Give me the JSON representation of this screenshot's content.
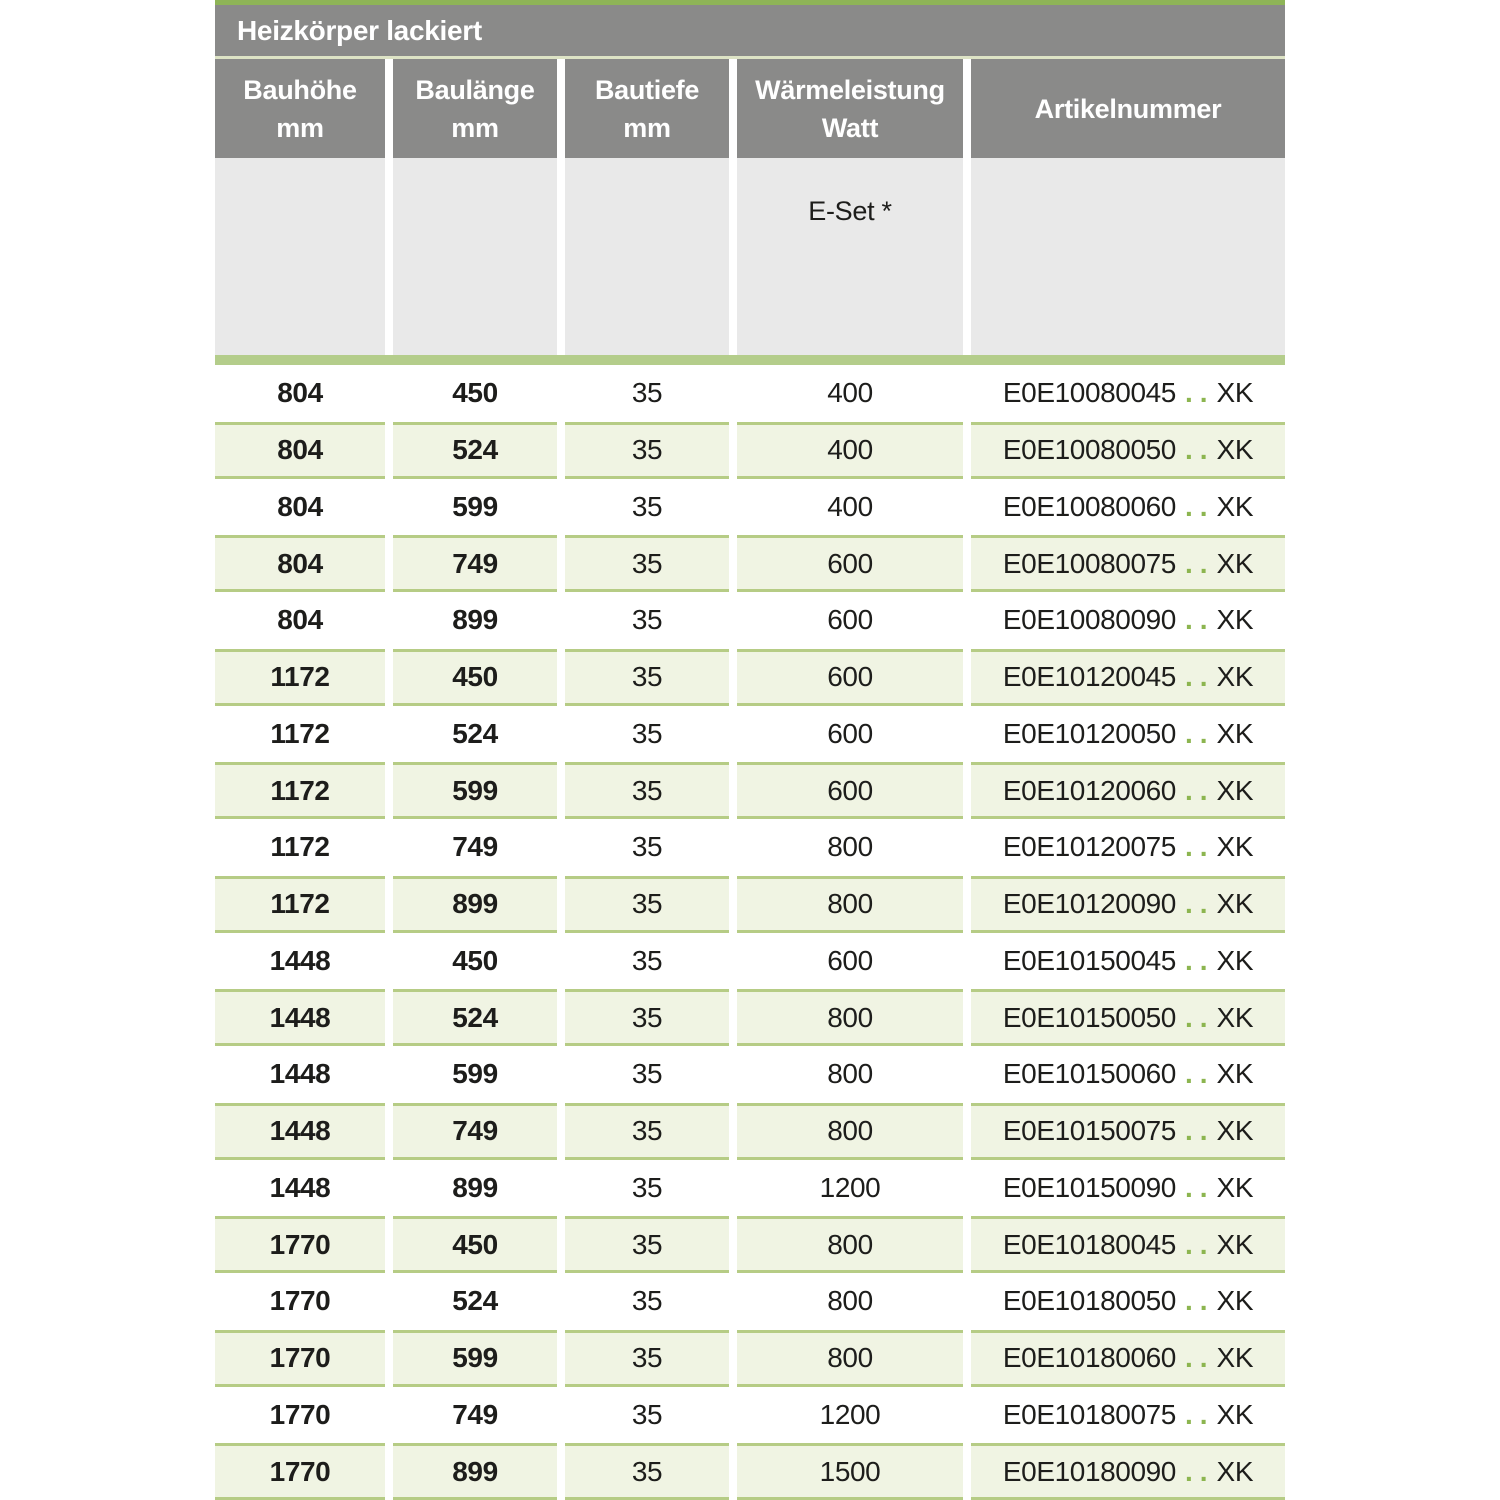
{
  "page": {
    "title": "Heizkörper lackiert"
  },
  "table": {
    "columns": [
      {
        "line1": "Bauhöhe",
        "line2": "mm"
      },
      {
        "line1": "Baulänge",
        "line2": "mm"
      },
      {
        "line1": "Bautiefe",
        "line2": "mm"
      },
      {
        "line1": "Wärmeleistung",
        "line2": "Watt"
      },
      {
        "line1": "Artikelnummer",
        "line2": ""
      }
    ],
    "subheader": {
      "eset_label": "E-Set *"
    },
    "artikel_dots": "..",
    "artikel_suffix": "XK",
    "rows": [
      {
        "bauhoehe": "804",
        "baulaenge": "450",
        "bautiefe": "35",
        "watt": "400",
        "artikel": "E0E10080045"
      },
      {
        "bauhoehe": "804",
        "baulaenge": "524",
        "bautiefe": "35",
        "watt": "400",
        "artikel": "E0E10080050"
      },
      {
        "bauhoehe": "804",
        "baulaenge": "599",
        "bautiefe": "35",
        "watt": "400",
        "artikel": "E0E10080060"
      },
      {
        "bauhoehe": "804",
        "baulaenge": "749",
        "bautiefe": "35",
        "watt": "600",
        "artikel": "E0E10080075"
      },
      {
        "bauhoehe": "804",
        "baulaenge": "899",
        "bautiefe": "35",
        "watt": "600",
        "artikel": "E0E10080090"
      },
      {
        "bauhoehe": "1172",
        "baulaenge": "450",
        "bautiefe": "35",
        "watt": "600",
        "artikel": "E0E10120045"
      },
      {
        "bauhoehe": "1172",
        "baulaenge": "524",
        "bautiefe": "35",
        "watt": "600",
        "artikel": "E0E10120050"
      },
      {
        "bauhoehe": "1172",
        "baulaenge": "599",
        "bautiefe": "35",
        "watt": "600",
        "artikel": "E0E10120060"
      },
      {
        "bauhoehe": "1172",
        "baulaenge": "749",
        "bautiefe": "35",
        "watt": "800",
        "artikel": "E0E10120075"
      },
      {
        "bauhoehe": "1172",
        "baulaenge": "899",
        "bautiefe": "35",
        "watt": "800",
        "artikel": "E0E10120090"
      },
      {
        "bauhoehe": "1448",
        "baulaenge": "450",
        "bautiefe": "35",
        "watt": "600",
        "artikel": "E0E10150045"
      },
      {
        "bauhoehe": "1448",
        "baulaenge": "524",
        "bautiefe": "35",
        "watt": "800",
        "artikel": "E0E10150050"
      },
      {
        "bauhoehe": "1448",
        "baulaenge": "599",
        "bautiefe": "35",
        "watt": "800",
        "artikel": "E0E10150060"
      },
      {
        "bauhoehe": "1448",
        "baulaenge": "749",
        "bautiefe": "35",
        "watt": "800",
        "artikel": "E0E10150075"
      },
      {
        "bauhoehe": "1448",
        "baulaenge": "899",
        "bautiefe": "35",
        "watt": "1200",
        "artikel": "E0E10150090"
      },
      {
        "bauhoehe": "1770",
        "baulaenge": "450",
        "bautiefe": "35",
        "watt": "800",
        "artikel": "E0E10180045"
      },
      {
        "bauhoehe": "1770",
        "baulaenge": "524",
        "bautiefe": "35",
        "watt": "800",
        "artikel": "E0E10180050"
      },
      {
        "bauhoehe": "1770",
        "baulaenge": "599",
        "bautiefe": "35",
        "watt": "800",
        "artikel": "E0E10180060"
      },
      {
        "bauhoehe": "1770",
        "baulaenge": "749",
        "bautiefe": "35",
        "watt": "1200",
        "artikel": "E0E10180075"
      },
      {
        "bauhoehe": "1770",
        "baulaenge": "899",
        "bautiefe": "35",
        "watt": "1500",
        "artikel": "E0E10180090"
      }
    ]
  },
  "colors": {
    "header_gray": "#8a8a89",
    "accent_green_strong": "#8eb457",
    "accent_green_soft": "#b4cd8b",
    "row_border_green": "#b6cc85",
    "row_bg_green": "#f0f4e3",
    "subheader_gray": "#e9e9e9",
    "pale_line": "#dde3c5",
    "dots_green": "#8cb54f",
    "text": "#1d1d1b"
  }
}
